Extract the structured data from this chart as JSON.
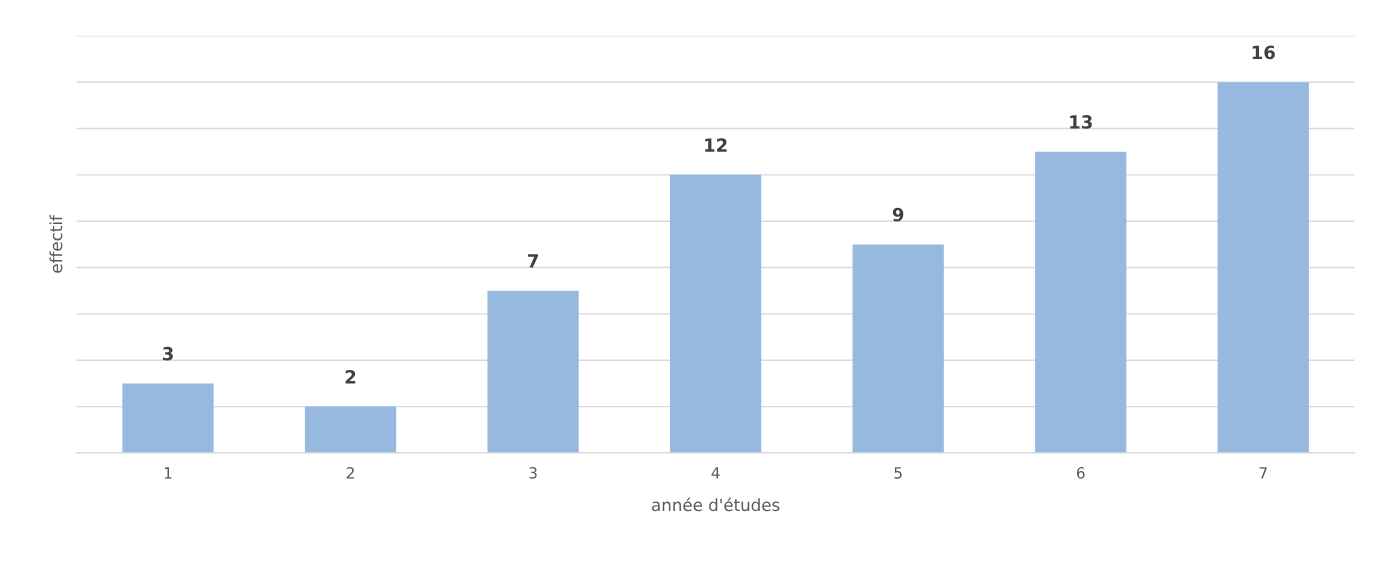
{
  "chart_data": {
    "type": "bar",
    "xlabel": "année d'études",
    "ylabel": "effectif",
    "categories": [
      "1",
      "2",
      "3",
      "4",
      "5",
      "6",
      "7"
    ],
    "values": [
      3,
      2,
      7,
      12,
      9,
      13,
      16
    ],
    "color": "#97b9e0",
    "ylim": [
      0,
      18
    ],
    "yticks": [
      {
        "value": 0,
        "label": null
      },
      {
        "value": 2,
        "label": null
      },
      {
        "value": 4,
        "label": null
      },
      {
        "value": 6,
        "label": null
      },
      {
        "value": 8,
        "label": null
      },
      {
        "value": 10,
        "label": null
      },
      {
        "value": 12,
        "label": null
      },
      {
        "value": 14,
        "label": null
      },
      {
        "value": 16,
        "label": null
      },
      {
        "value": 18,
        "label": null
      }
    ],
    "grid": "y",
    "data_labels": true,
    "tick_labels": "x"
  }
}
